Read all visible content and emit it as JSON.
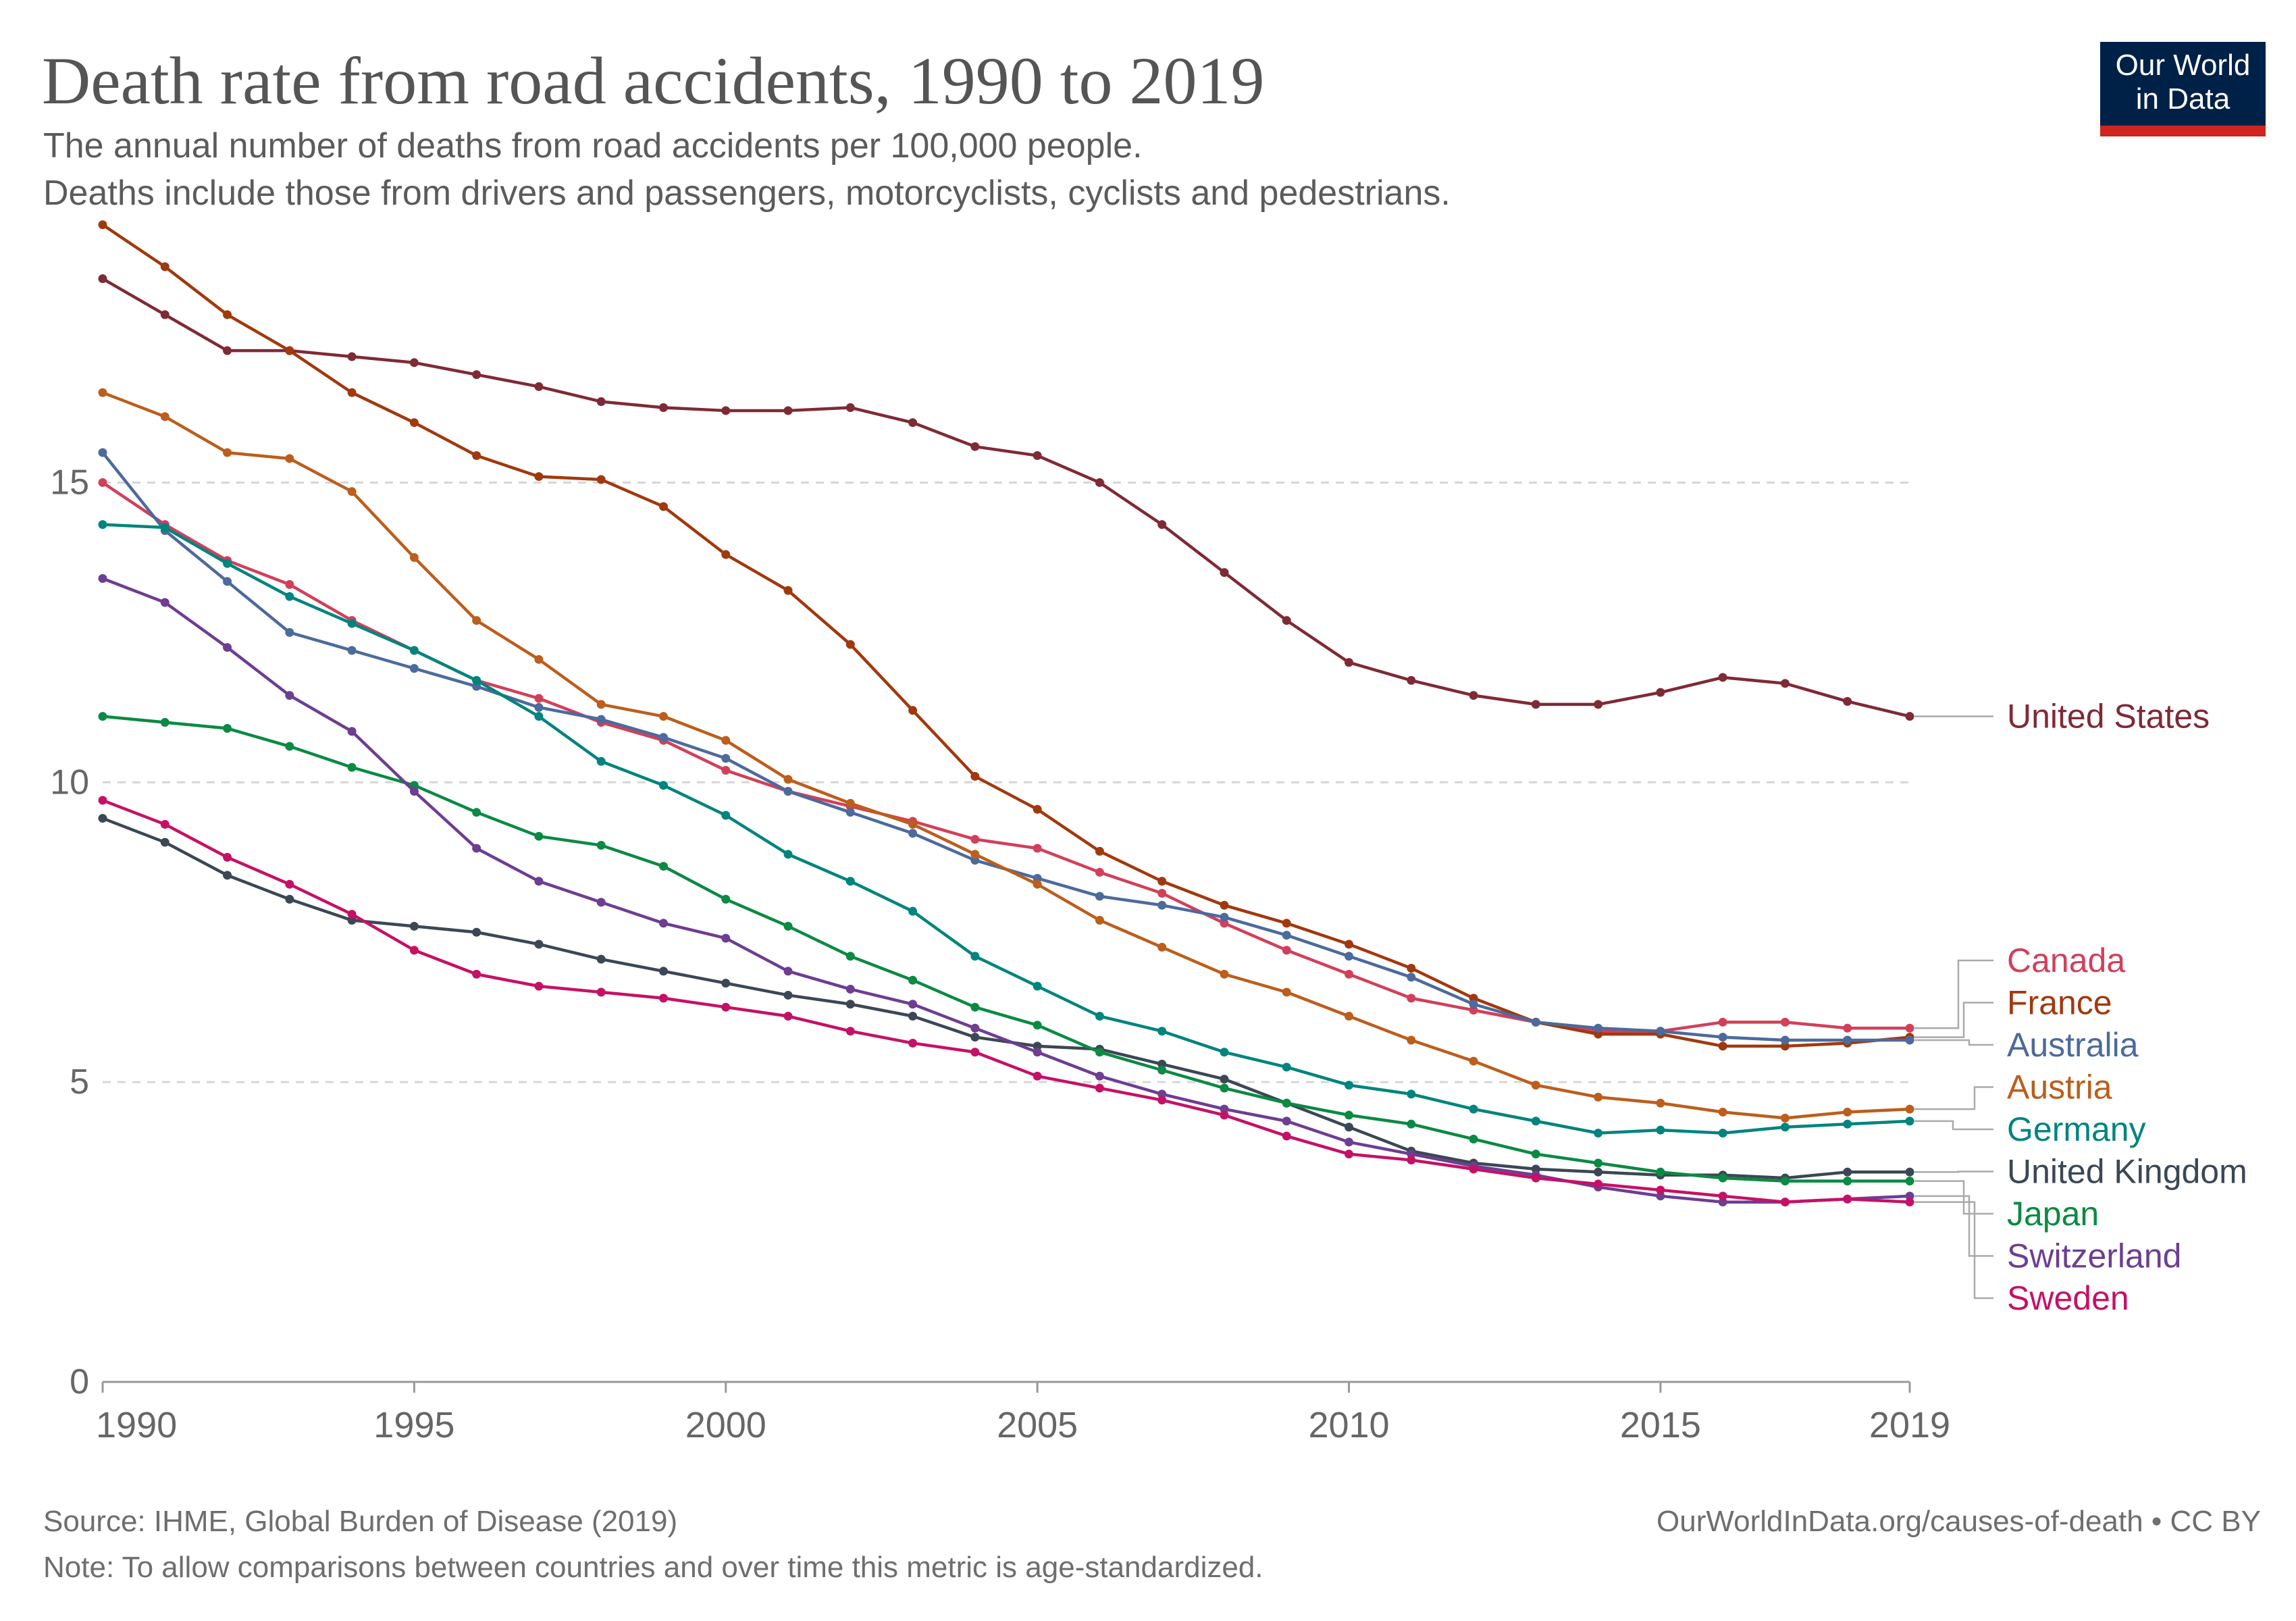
{
  "header": {
    "title": "Death rate from road accidents, 1990 to 2019",
    "subtitle_1": "The annual number of deaths from road accidents per 100,000 people.",
    "subtitle_2": "Deaths include those from drivers and passengers, motorcyclists, cyclists and pedestrians."
  },
  "logo": {
    "line1": "Our World",
    "line2": "in Data",
    "bg": "#002147",
    "accent": "#ce261e"
  },
  "footer": {
    "source": "Source: IHME, Global Burden of Disease (2019)",
    "note": "Note: To allow comparisons between countries and over time this metric is age-standardized.",
    "url": "OurWorldInData.org/causes-of-death • CC BY"
  },
  "chart_data": {
    "type": "line",
    "x": [
      1990,
      1991,
      1992,
      1993,
      1994,
      1995,
      1996,
      1997,
      1998,
      1999,
      2000,
      2001,
      2002,
      2003,
      2004,
      2005,
      2006,
      2007,
      2008,
      2009,
      2010,
      2011,
      2012,
      2013,
      2014,
      2015,
      2016,
      2017,
      2018,
      2019
    ],
    "xticks": [
      1990,
      1995,
      2000,
      2005,
      2010,
      2015,
      2019
    ],
    "yticks": [
      0,
      5,
      10,
      15
    ],
    "ylim": [
      0,
      19.5
    ],
    "grid": "horizontal dashed",
    "legend": "right, end-of-line labels",
    "series": [
      {
        "name": "United States",
        "color": "#7f2a37",
        "values": [
          18.4,
          17.8,
          17.2,
          17.2,
          17.1,
          17.0,
          16.8,
          16.6,
          16.35,
          16.25,
          16.2,
          16.2,
          16.25,
          16.0,
          15.6,
          15.45,
          15.0,
          14.3,
          13.5,
          12.7,
          12.0,
          11.7,
          11.45,
          11.3,
          11.3,
          11.5,
          11.75,
          11.65,
          11.35,
          11.1
        ]
      },
      {
        "name": "Canada",
        "color": "#d1405b",
        "values": [
          15.0,
          14.3,
          13.7,
          13.3,
          12.7,
          12.2,
          11.7,
          11.4,
          11.0,
          10.7,
          10.2,
          9.85,
          9.6,
          9.35,
          9.05,
          8.9,
          8.5,
          8.15,
          7.65,
          7.2,
          6.8,
          6.4,
          6.2,
          6.0,
          5.85,
          5.85,
          6.0,
          6.0,
          5.9,
          5.9
        ]
      },
      {
        "name": "France",
        "color": "#a1390e",
        "values": [
          19.3,
          18.6,
          17.8,
          17.2,
          16.5,
          16.0,
          15.45,
          15.1,
          15.05,
          14.6,
          13.8,
          13.2,
          12.3,
          11.2,
          10.1,
          9.55,
          8.85,
          8.35,
          7.95,
          7.65,
          7.3,
          6.9,
          6.4,
          6.0,
          5.8,
          5.8,
          5.6,
          5.6,
          5.65,
          5.75
        ]
      },
      {
        "name": "Australia",
        "color": "#4c6a9c",
        "values": [
          15.5,
          14.2,
          13.35,
          12.5,
          12.2,
          11.9,
          11.6,
          11.25,
          11.05,
          10.75,
          10.4,
          9.85,
          9.5,
          9.15,
          8.7,
          8.4,
          8.1,
          7.95,
          7.75,
          7.45,
          7.1,
          6.75,
          6.3,
          6.0,
          5.9,
          5.85,
          5.75,
          5.7,
          5.7,
          5.7
        ]
      },
      {
        "name": "Austria",
        "color": "#bc5e1c",
        "values": [
          16.5,
          16.1,
          15.5,
          15.4,
          14.85,
          13.75,
          12.7,
          12.05,
          11.3,
          11.1,
          10.7,
          10.05,
          9.65,
          9.3,
          8.8,
          8.3,
          7.7,
          7.25,
          6.8,
          6.5,
          6.1,
          5.7,
          5.35,
          4.95,
          4.75,
          4.65,
          4.5,
          4.4,
          4.5,
          4.55
        ]
      },
      {
        "name": "Germany",
        "color": "#00847e",
        "values": [
          14.3,
          14.25,
          13.65,
          13.1,
          12.65,
          12.2,
          11.7,
          11.1,
          10.35,
          9.95,
          9.45,
          8.8,
          8.35,
          7.85,
          7.1,
          6.6,
          6.1,
          5.85,
          5.5,
          5.25,
          4.95,
          4.8,
          4.55,
          4.35,
          4.15,
          4.2,
          4.15,
          4.25,
          4.3,
          4.35
        ]
      },
      {
        "name": "United Kingdom",
        "color": "#3b4755",
        "values": [
          9.4,
          9.0,
          8.45,
          8.05,
          7.7,
          7.6,
          7.5,
          7.3,
          7.05,
          6.85,
          6.65,
          6.45,
          6.3,
          6.1,
          5.75,
          5.6,
          5.55,
          5.3,
          5.05,
          4.65,
          4.25,
          3.85,
          3.65,
          3.55,
          3.5,
          3.45,
          3.45,
          3.4,
          3.5,
          3.5
        ]
      },
      {
        "name": "Japan",
        "color": "#0b8a43",
        "values": [
          11.1,
          11.0,
          10.9,
          10.6,
          10.25,
          9.95,
          9.5,
          9.1,
          8.95,
          8.6,
          8.05,
          7.6,
          7.1,
          6.7,
          6.25,
          5.95,
          5.5,
          5.2,
          4.9,
          4.65,
          4.45,
          4.3,
          4.05,
          3.8,
          3.65,
          3.5,
          3.4,
          3.35,
          3.35,
          3.35
        ]
      },
      {
        "name": "Switzerland",
        "color": "#6d3e91",
        "values": [
          13.4,
          13.0,
          12.25,
          11.45,
          10.85,
          9.85,
          8.9,
          8.35,
          8.0,
          7.65,
          7.4,
          6.85,
          6.55,
          6.3,
          5.9,
          5.5,
          5.1,
          4.8,
          4.55,
          4.35,
          4.0,
          3.8,
          3.6,
          3.45,
          3.25,
          3.1,
          3.0,
          3.0,
          3.05,
          3.1
        ]
      },
      {
        "name": "Sweden",
        "color": "#c51165",
        "values": [
          9.7,
          9.3,
          8.75,
          8.3,
          7.8,
          7.2,
          6.8,
          6.6,
          6.5,
          6.4,
          6.25,
          6.1,
          5.85,
          5.65,
          5.5,
          5.1,
          4.9,
          4.7,
          4.45,
          4.1,
          3.8,
          3.7,
          3.55,
          3.4,
          3.3,
          3.2,
          3.1,
          3.0,
          3.05,
          3.0
        ]
      }
    ]
  }
}
